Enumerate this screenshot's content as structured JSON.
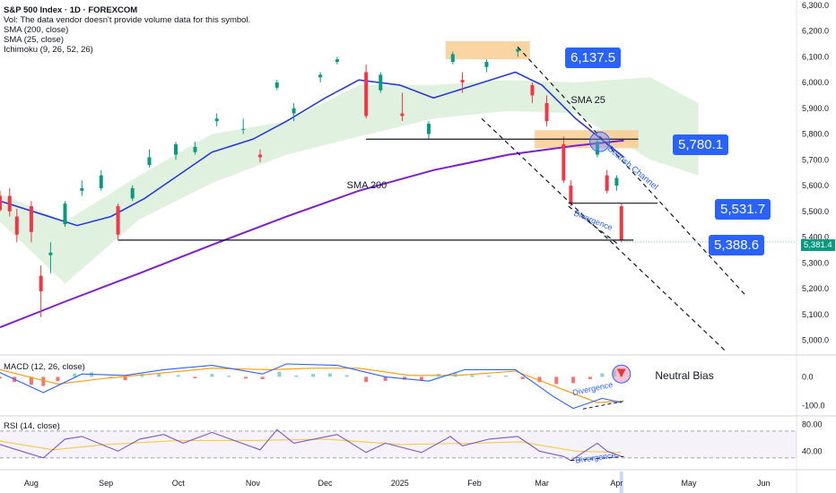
{
  "header": {
    "title": "S&P 500 Index · 1D · FOREXCOM",
    "vol_note": "Vol: The data vendor doesn't provide volume data for this symbol.",
    "sma200_label": "SMA (200, close)",
    "sma25_label": "SMA (25, close)",
    "ichimoku_label": "Ichimoku (9, 26, 52, 26)"
  },
  "chart_data": [
    {
      "type": "candlestick",
      "symbol": "S&P 500 Index",
      "timeframe": "1D",
      "yaxis_ticks": [
        "6,300.0",
        "6,200.0",
        "6,100.0",
        "6,000.0",
        "5,900.0",
        "5,800.0",
        "5,700.0",
        "5,600.0",
        "5,500.0",
        "5,400.0",
        "5,300.0",
        "5,200.0",
        "5,100.0",
        "5,000.0"
      ],
      "ylim": [
        4950,
        6320
      ],
      "xaxis_ticks": [
        "Aug",
        "Sep",
        "Oct",
        "Nov",
        "Dec",
        "2025",
        "Feb",
        "Mar",
        "Apr",
        "May",
        "Jun"
      ],
      "last_price": "5,381.4",
      "candles": [
        {
          "d": "2024-07-19",
          "o": 5560,
          "h": 5580,
          "l": 5500,
          "c": 5505
        },
        {
          "d": "2024-07-23",
          "o": 5560,
          "h": 5590,
          "l": 5480,
          "c": 5500
        },
        {
          "d": "2024-07-26",
          "o": 5480,
          "h": 5510,
          "l": 5380,
          "c": 5410
        },
        {
          "d": "2024-08-01",
          "o": 5520,
          "h": 5540,
          "l": 5380,
          "c": 5420
        },
        {
          "d": "2024-08-05",
          "o": 5250,
          "h": 5290,
          "l": 5090,
          "c": 5190
        },
        {
          "d": "2024-08-09",
          "o": 5330,
          "h": 5380,
          "l": 5260,
          "c": 5340
        },
        {
          "d": "2024-08-15",
          "o": 5450,
          "h": 5540,
          "l": 5440,
          "c": 5530
        },
        {
          "d": "2024-08-22",
          "o": 5580,
          "h": 5620,
          "l": 5560,
          "c": 5590
        },
        {
          "d": "2024-08-30",
          "o": 5590,
          "h": 5660,
          "l": 5580,
          "c": 5640
        },
        {
          "d": "2024-09-06",
          "o": 5520,
          "h": 5530,
          "l": 5390,
          "c": 5410
        },
        {
          "d": "2024-09-12",
          "o": 5550,
          "h": 5600,
          "l": 5540,
          "c": 5590
        },
        {
          "d": "2024-09-19",
          "o": 5680,
          "h": 5740,
          "l": 5670,
          "c": 5710
        },
        {
          "d": "2024-09-30",
          "o": 5720,
          "h": 5770,
          "l": 5700,
          "c": 5760
        },
        {
          "d": "2024-10-08",
          "o": 5730,
          "h": 5770,
          "l": 5720,
          "c": 5750
        },
        {
          "d": "2024-10-17",
          "o": 5850,
          "h": 5880,
          "l": 5830,
          "c": 5860
        },
        {
          "d": "2024-10-28",
          "o": 5820,
          "h": 5860,
          "l": 5800,
          "c": 5820
        },
        {
          "d": "2024-11-04",
          "o": 5720,
          "h": 5740,
          "l": 5690,
          "c": 5710
        },
        {
          "d": "2024-11-11",
          "o": 5980,
          "h": 6010,
          "l": 5970,
          "c": 6000
        },
        {
          "d": "2024-11-18",
          "o": 5880,
          "h": 5920,
          "l": 5850,
          "c": 5900
        },
        {
          "d": "2024-11-29",
          "o": 6020,
          "h": 6040,
          "l": 6000,
          "c": 6030
        },
        {
          "d": "2024-12-06",
          "o": 6080,
          "h": 6100,
          "l": 6070,
          "c": 6090
        },
        {
          "d": "2024-12-18",
          "o": 6040,
          "h": 6070,
          "l": 5860,
          "c": 5870
        },
        {
          "d": "2024-12-24",
          "o": 5970,
          "h": 6040,
          "l": 5960,
          "c": 6030
        },
        {
          "d": "2025-01-02",
          "o": 5880,
          "h": 5960,
          "l": 5850,
          "c": 5870
        },
        {
          "d": "2025-01-13",
          "o": 5800,
          "h": 5850,
          "l": 5780,
          "c": 5840
        },
        {
          "d": "2025-01-23",
          "o": 6080,
          "h": 6120,
          "l": 6070,
          "c": 6110
        },
        {
          "d": "2025-01-27",
          "o": 6010,
          "h": 6040,
          "l": 5960,
          "c": 6000
        },
        {
          "d": "2025-02-06",
          "o": 6060,
          "h": 6090,
          "l": 6040,
          "c": 6080
        },
        {
          "d": "2025-02-19",
          "o": 6120,
          "h": 6140,
          "l": 6100,
          "c": 6130
        },
        {
          "d": "2025-02-25",
          "o": 5990,
          "h": 6000,
          "l": 5920,
          "c": 5950
        },
        {
          "d": "2025-03-03",
          "o": 5920,
          "h": 5950,
          "l": 5830,
          "c": 5850
        },
        {
          "d": "2025-03-10",
          "o": 5760,
          "h": 5790,
          "l": 5610,
          "c": 5620
        },
        {
          "d": "2025-03-13",
          "o": 5600,
          "h": 5620,
          "l": 5520,
          "c": 5530
        },
        {
          "d": "2025-03-24",
          "o": 5720,
          "h": 5780,
          "l": 5710,
          "c": 5770
        },
        {
          "d": "2025-03-28",
          "o": 5640,
          "h": 5660,
          "l": 5570,
          "c": 5580
        },
        {
          "d": "2025-04-01",
          "o": 5600,
          "h": 5640,
          "l": 5580,
          "c": 5630
        },
        {
          "d": "2025-04-03",
          "o": 5520,
          "h": 5530,
          "l": 5380,
          "c": 5390
        }
      ],
      "sma25": [
        {
          "d": "2024-07-19",
          "v": 5540
        },
        {
          "d": "2024-08-05",
          "v": 5490
        },
        {
          "d": "2024-08-20",
          "v": 5445
        },
        {
          "d": "2024-09-03",
          "v": 5480
        },
        {
          "d": "2024-09-17",
          "v": 5550
        },
        {
          "d": "2024-10-01",
          "v": 5640
        },
        {
          "d": "2024-10-15",
          "v": 5730
        },
        {
          "d": "2024-11-01",
          "v": 5780
        },
        {
          "d": "2024-11-15",
          "v": 5850
        },
        {
          "d": "2024-12-01",
          "v": 5940
        },
        {
          "d": "2024-12-15",
          "v": 6010
        },
        {
          "d": "2025-01-01",
          "v": 5990
        },
        {
          "d": "2025-01-15",
          "v": 5940
        },
        {
          "d": "2025-02-01",
          "v": 5990
        },
        {
          "d": "2025-02-18",
          "v": 6040
        },
        {
          "d": "2025-03-01",
          "v": 5990
        },
        {
          "d": "2025-03-15",
          "v": 5860
        },
        {
          "d": "2025-04-04",
          "v": 5710
        }
      ],
      "sma200": [
        {
          "d": "2024-07-19",
          "v": 5050
        },
        {
          "d": "2024-08-15",
          "v": 5150
        },
        {
          "d": "2024-09-15",
          "v": 5260
        },
        {
          "d": "2024-10-15",
          "v": 5370
        },
        {
          "d": "2024-11-15",
          "v": 5480
        },
        {
          "d": "2024-12-15",
          "v": 5580
        },
        {
          "d": "2025-01-15",
          "v": 5660
        },
        {
          "d": "2025-02-15",
          "v": 5720
        },
        {
          "d": "2025-03-15",
          "v": 5755
        },
        {
          "d": "2025-04-04",
          "v": 5775
        }
      ],
      "ichimoku_cloud_upper": [
        {
          "d": "2024-07-19",
          "v": 5570
        },
        {
          "d": "2024-08-15",
          "v": 5460
        },
        {
          "d": "2024-09-15",
          "v": 5640
        },
        {
          "d": "2024-10-15",
          "v": 5800
        },
        {
          "d": "2024-11-15",
          "v": 5850
        },
        {
          "d": "2024-12-15",
          "v": 5990
        },
        {
          "d": "2025-01-15",
          "v": 5990
        },
        {
          "d": "2025-02-15",
          "v": 6010
        },
        {
          "d": "2025-03-15",
          "v": 6000
        },
        {
          "d": "2025-04-15",
          "v": 6020
        },
        {
          "d": "2025-05-05",
          "v": 5920
        }
      ],
      "ichimoku_cloud_lower": [
        {
          "d": "2024-07-19",
          "v": 5460
        },
        {
          "d": "2024-08-15",
          "v": 5220
        },
        {
          "d": "2024-09-15",
          "v": 5470
        },
        {
          "d": "2024-10-15",
          "v": 5610
        },
        {
          "d": "2024-11-15",
          "v": 5720
        },
        {
          "d": "2024-12-15",
          "v": 5790
        },
        {
          "d": "2025-01-15",
          "v": 5860
        },
        {
          "d": "2025-02-15",
          "v": 5890
        },
        {
          "d": "2025-03-15",
          "v": 5880
        },
        {
          "d": "2025-04-15",
          "v": 5700
        },
        {
          "d": "2025-05-05",
          "v": 5640
        }
      ],
      "horizontal_levels": [
        {
          "price": 5780.1,
          "from": "2024-12-18",
          "to": "2025-04-10"
        },
        {
          "price": 5531.7,
          "from": "2025-03-12",
          "to": "2025-04-18"
        },
        {
          "price": 5388.6,
          "from": "2024-09-06",
          "to": "2025-04-08"
        }
      ],
      "zones": [
        {
          "from": "2025-01-20",
          "to": "2025-02-24",
          "low": 6090,
          "high": 6160,
          "color": "#f9c98c"
        },
        {
          "from": "2025-02-26",
          "to": "2025-04-10",
          "low": 5745,
          "high": 5815,
          "color": "#f9c98c"
        }
      ],
      "trend_lines": [
        {
          "d1": "2025-02-19",
          "v1": 6137.5,
          "d2": "2025-05-25",
          "v2": 5170
        },
        {
          "d1": "2025-02-04",
          "v1": 5860,
          "d2": "2025-05-16",
          "v2": 4960
        },
        {
          "d1": "2025-03-12",
          "v1": 5520,
          "d2": "2025-04-02",
          "v2": 5370
        }
      ],
      "annotations": {
        "high_level": "6,137.5",
        "resistance": "5,780.1",
        "support_1": "5,531.7",
        "support_2": "5,388.6",
        "sma25_text": "SMA 25",
        "sma200_text": "SMA 200",
        "channel_text": "Bearish Channel",
        "divergence_text": "Divergence"
      },
      "colors": {
        "up": "#089981",
        "down": "#f23645",
        "sma25": "#2a3ad6",
        "sma200": "#7b1fd1",
        "cloud": "#a5d6a7",
        "cloud_bear": "#ffcdd2",
        "accent": "#2962ff"
      }
    },
    {
      "type": "macd",
      "label": "MACD (12, 26, close)",
      "yaxis_ticks": [
        "0.0",
        "-100.0"
      ],
      "ylim": [
        -130,
        70
      ],
      "bias_text": "Neutral Bias",
      "divergence_text": "Divergence",
      "histogram": [
        {
          "d": "2024-07-19",
          "v": -5
        },
        {
          "d": "2024-07-25",
          "v": -18
        },
        {
          "d": "2024-08-01",
          "v": -28
        },
        {
          "d": "2024-08-06",
          "v": -32
        },
        {
          "d": "2024-08-12",
          "v": -15
        },
        {
          "d": "2024-08-19",
          "v": 12
        },
        {
          "d": "2024-08-26",
          "v": 16
        },
        {
          "d": "2024-09-03",
          "v": -4
        },
        {
          "d": "2024-09-09",
          "v": -12
        },
        {
          "d": "2024-09-16",
          "v": 10
        },
        {
          "d": "2024-09-23",
          "v": 12
        },
        {
          "d": "2024-10-01",
          "v": 6
        },
        {
          "d": "2024-10-08",
          "v": -5
        },
        {
          "d": "2024-10-15",
          "v": 10
        },
        {
          "d": "2024-10-22",
          "v": 4
        },
        {
          "d": "2024-10-29",
          "v": -6
        },
        {
          "d": "2024-11-05",
          "v": -8
        },
        {
          "d": "2024-11-12",
          "v": 18
        },
        {
          "d": "2024-11-19",
          "v": 5
        },
        {
          "d": "2024-11-26",
          "v": 10
        },
        {
          "d": "2024-12-03",
          "v": 12
        },
        {
          "d": "2024-12-10",
          "v": 6
        },
        {
          "d": "2024-12-18",
          "v": -18
        },
        {
          "d": "2024-12-26",
          "v": -14
        },
        {
          "d": "2025-01-03",
          "v": -10
        },
        {
          "d": "2025-01-10",
          "v": -12
        },
        {
          "d": "2025-01-17",
          "v": 10
        },
        {
          "d": "2025-01-24",
          "v": 14
        },
        {
          "d": "2025-01-31",
          "v": 6
        },
        {
          "d": "2025-02-07",
          "v": 4
        },
        {
          "d": "2025-02-14",
          "v": 5
        },
        {
          "d": "2025-02-21",
          "v": -8
        },
        {
          "d": "2025-02-28",
          "v": -18
        },
        {
          "d": "2025-03-07",
          "v": -25
        },
        {
          "d": "2025-03-14",
          "v": -22
        },
        {
          "d": "2025-03-21",
          "v": -8
        },
        {
          "d": "2025-03-26",
          "v": 12
        },
        {
          "d": "2025-03-31",
          "v": 22
        },
        {
          "d": "2025-04-03",
          "v": 15
        }
      ],
      "macd_line": [
        {
          "d": "2024-07-19",
          "v": 15
        },
        {
          "d": "2024-08-06",
          "v": -55
        },
        {
          "d": "2024-08-22",
          "v": 10
        },
        {
          "d": "2024-09-09",
          "v": 5
        },
        {
          "d": "2024-09-25",
          "v": 25
        },
        {
          "d": "2024-10-15",
          "v": 40
        },
        {
          "d": "2024-11-05",
          "v": 10
        },
        {
          "d": "2024-11-15",
          "v": 45
        },
        {
          "d": "2024-12-06",
          "v": 40
        },
        {
          "d": "2024-12-26",
          "v": 0
        },
        {
          "d": "2025-01-13",
          "v": -15
        },
        {
          "d": "2025-01-28",
          "v": 25
        },
        {
          "d": "2025-02-18",
          "v": 25
        },
        {
          "d": "2025-03-06",
          "v": -70
        },
        {
          "d": "2025-03-14",
          "v": -110
        },
        {
          "d": "2025-03-26",
          "v": -75
        },
        {
          "d": "2025-04-03",
          "v": -90
        }
      ],
      "signal_line": [
        {
          "d": "2024-07-19",
          "v": 25
        },
        {
          "d": "2024-08-12",
          "v": -25
        },
        {
          "d": "2024-09-01",
          "v": -5
        },
        {
          "d": "2024-09-20",
          "v": 10
        },
        {
          "d": "2024-10-15",
          "v": 30
        },
        {
          "d": "2024-11-08",
          "v": 25
        },
        {
          "d": "2024-11-25",
          "v": 30
        },
        {
          "d": "2024-12-15",
          "v": 30
        },
        {
          "d": "2025-01-05",
          "v": 5
        },
        {
          "d": "2025-01-25",
          "v": 5
        },
        {
          "d": "2025-02-18",
          "v": 20
        },
        {
          "d": "2025-03-10",
          "v": -45
        },
        {
          "d": "2025-03-24",
          "v": -90
        },
        {
          "d": "2025-04-03",
          "v": -85
        }
      ]
    },
    {
      "type": "rsi",
      "label": "RSI (14, close)",
      "yaxis_ticks": [
        "80.00",
        "40.00"
      ],
      "ylim": [
        15,
        90
      ],
      "bands": [
        70,
        30
      ],
      "divergence_text": "Divergence",
      "rsi_line": [
        {
          "d": "2024-07-19",
          "v": 50
        },
        {
          "d": "2024-07-26",
          "v": 42
        },
        {
          "d": "2024-08-06",
          "v": 30
        },
        {
          "d": "2024-08-15",
          "v": 58
        },
        {
          "d": "2024-08-22",
          "v": 62
        },
        {
          "d": "2024-09-06",
          "v": 40
        },
        {
          "d": "2024-09-15",
          "v": 58
        },
        {
          "d": "2024-09-25",
          "v": 65
        },
        {
          "d": "2024-10-03",
          "v": 52
        },
        {
          "d": "2024-10-15",
          "v": 68
        },
        {
          "d": "2024-10-25",
          "v": 55
        },
        {
          "d": "2024-11-04",
          "v": 42
        },
        {
          "d": "2024-11-11",
          "v": 72
        },
        {
          "d": "2024-11-18",
          "v": 52
        },
        {
          "d": "2024-12-06",
          "v": 65
        },
        {
          "d": "2024-12-18",
          "v": 38
        },
        {
          "d": "2024-12-26",
          "v": 52
        },
        {
          "d": "2025-01-10",
          "v": 38
        },
        {
          "d": "2025-01-22",
          "v": 62
        },
        {
          "d": "2025-01-27",
          "v": 48
        },
        {
          "d": "2025-02-07",
          "v": 58
        },
        {
          "d": "2025-02-19",
          "v": 62
        },
        {
          "d": "2025-02-28",
          "v": 40
        },
        {
          "d": "2025-03-10",
          "v": 32
        },
        {
          "d": "2025-03-13",
          "v": 26
        },
        {
          "d": "2025-03-24",
          "v": 52
        },
        {
          "d": "2025-03-28",
          "v": 40
        },
        {
          "d": "2025-04-03",
          "v": 32
        }
      ],
      "rsi_ma": [
        {
          "d": "2024-07-19",
          "v": 55
        },
        {
          "d": "2024-08-10",
          "v": 42
        },
        {
          "d": "2024-09-01",
          "v": 50
        },
        {
          "d": "2024-10-01",
          "v": 56
        },
        {
          "d": "2024-11-01",
          "v": 56
        },
        {
          "d": "2024-12-01",
          "v": 58
        },
        {
          "d": "2025-01-01",
          "v": 50
        },
        {
          "d": "2025-02-01",
          "v": 52
        },
        {
          "d": "2025-02-20",
          "v": 54
        },
        {
          "d": "2025-03-15",
          "v": 40
        },
        {
          "d": "2025-04-03",
          "v": 38
        }
      ]
    }
  ]
}
